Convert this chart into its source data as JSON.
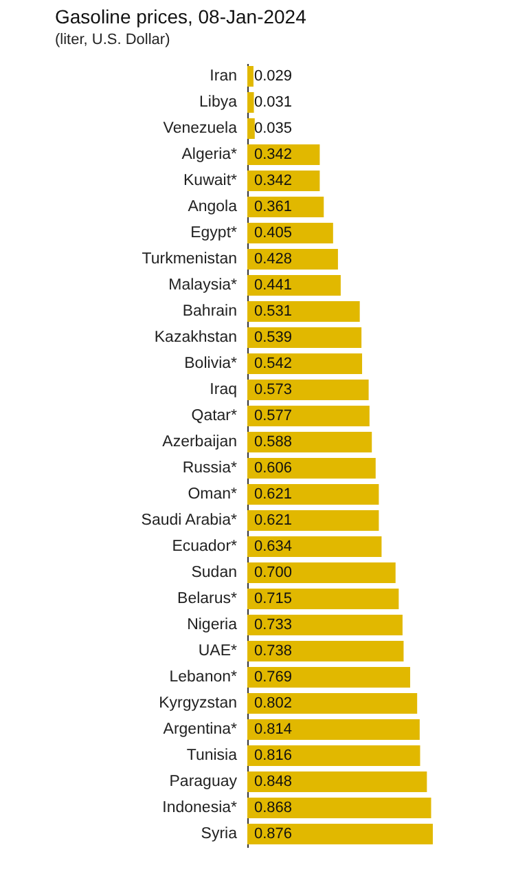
{
  "chart_data": {
    "type": "bar",
    "orientation": "horizontal",
    "title": "Gasoline prices, 08-Jan-2024",
    "subtitle": "(liter, U.S. Dollar)",
    "categories": [
      "Iran",
      "Libya",
      "Venezuela",
      "Algeria*",
      "Kuwait*",
      "Angola",
      "Egypt*",
      "Turkmenistan",
      "Malaysia*",
      "Bahrain",
      "Kazakhstan",
      "Bolivia*",
      "Iraq",
      "Qatar*",
      "Azerbaijan",
      "Russia*",
      "Oman*",
      "Saudi Arabia*",
      "Ecuador*",
      "Sudan",
      "Belarus*",
      "Nigeria",
      "UAE*",
      "Lebanon*",
      "Kyrgyzstan",
      "Argentina*",
      "Tunisia",
      "Paraguay",
      "Indonesia*",
      "Syria"
    ],
    "values": [
      0.029,
      0.031,
      0.035,
      0.342,
      0.342,
      0.361,
      0.405,
      0.428,
      0.441,
      0.531,
      0.539,
      0.542,
      0.573,
      0.577,
      0.588,
      0.606,
      0.621,
      0.621,
      0.634,
      0.7,
      0.715,
      0.733,
      0.738,
      0.769,
      0.802,
      0.814,
      0.816,
      0.848,
      0.868,
      0.876
    ],
    "value_labels": [
      "0.029",
      "0.031",
      "0.035",
      "0.342",
      "0.342",
      "0.361",
      "0.405",
      "0.428",
      "0.441",
      "0.531",
      "0.539",
      "0.542",
      "0.573",
      "0.577",
      "0.588",
      "0.606",
      "0.621",
      "0.621",
      "0.634",
      "0.700",
      "0.715",
      "0.733",
      "0.738",
      "0.769",
      "0.802",
      "0.814",
      "0.816",
      "0.848",
      "0.868",
      "0.876"
    ],
    "color": "#e1b800",
    "grid": false,
    "tick_labels": "y"
  }
}
